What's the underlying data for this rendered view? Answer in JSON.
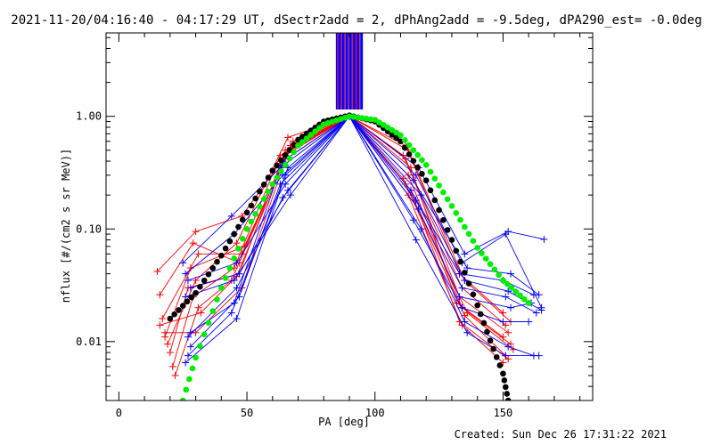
{
  "chart_data": {
    "type": "scatter",
    "title": "2021-11-20/04:16:40 - 04:17:29 UT, dSectr2add = 2, dPhAng2add = -9.5deg, dPA290_est= -0.0deg",
    "xlabel": "PA [deg]",
    "ylabel": "nflux [#/(cm2 s sr MeV)]",
    "xlim": [
      -5,
      185
    ],
    "ylim": [
      0.003,
      5.5
    ],
    "y_scale": "log",
    "x_ticks": [
      0,
      50,
      100,
      150
    ],
    "x_tick_labels": [
      "0",
      "50",
      "100",
      "150"
    ],
    "y_ticks": [
      0.01,
      0.1,
      1.0
    ],
    "y_tick_labels": [
      "0.01",
      "0.10",
      "1.00"
    ],
    "grid": false,
    "colors": {
      "red": "#ff0000",
      "blue": "#0000ff",
      "black": "#000000",
      "green": "#00ee00"
    },
    "vertical_lines": {
      "x_range": [
        85,
        95
      ],
      "y_range": [
        1.15,
        5.5
      ],
      "count": 22
    },
    "series": [
      {
        "color": "red",
        "style": "line-plus",
        "lines": [
          [
            [
              15,
              0.042
            ],
            [
              30,
              0.095
            ],
            [
              48,
              0.13
            ],
            [
              65,
              0.45
            ],
            [
              90,
              1.0
            ],
            [
              112,
              0.55
            ],
            [
              133,
              0.04
            ],
            [
              150,
              0.018
            ]
          ],
          [
            [
              16,
              0.026
            ],
            [
              29,
              0.075
            ],
            [
              47,
              0.05
            ],
            [
              66,
              0.5
            ],
            [
              90,
              1.0
            ],
            [
              113,
              0.5
            ],
            [
              135,
              0.035
            ],
            [
              153,
              0.015
            ]
          ],
          [
            [
              17,
              0.016
            ],
            [
              31,
              0.06
            ],
            [
              48,
              0.06
            ],
            [
              67,
              0.55
            ],
            [
              90,
              1.0
            ],
            [
              111,
              0.45
            ],
            [
              134,
              0.03
            ],
            [
              151,
              0.014
            ]
          ],
          [
            [
              18,
              0.011
            ],
            [
              28,
              0.045
            ],
            [
              49,
              0.07
            ],
            [
              68,
              0.6
            ],
            [
              90,
              1.0
            ],
            [
              112,
              0.42
            ],
            [
              133,
              0.025
            ],
            [
              152,
              0.012
            ]
          ],
          [
            [
              19,
              0.0095
            ],
            [
              30,
              0.035
            ],
            [
              46,
              0.075
            ],
            [
              66,
              0.65
            ],
            [
              90,
              1.0
            ],
            [
              114,
              0.35
            ],
            [
              132,
              0.022
            ],
            [
              150,
              0.011
            ]
          ],
          [
            [
              20,
              0.008
            ],
            [
              27,
              0.03
            ],
            [
              47,
              0.04
            ],
            [
              65,
              0.5
            ],
            [
              90,
              1.0
            ],
            [
              113,
              0.3
            ],
            [
              134,
              0.02
            ],
            [
              153,
              0.0095
            ]
          ],
          [
            [
              21,
              0.006
            ],
            [
              29,
              0.025
            ],
            [
              45,
              0.045
            ],
            [
              63,
              0.45
            ],
            [
              90,
              1.0
            ],
            [
              111,
              0.28
            ],
            [
              136,
              0.018
            ],
            [
              154,
              0.0085
            ]
          ],
          [
            [
              22,
              0.005
            ],
            [
              31,
              0.02
            ],
            [
              44,
              0.035
            ],
            [
              64,
              0.4
            ],
            [
              90,
              1.0
            ],
            [
              112,
              0.25
            ],
            [
              135,
              0.017
            ],
            [
              151,
              0.0075
            ]
          ],
          [
            [
              16,
              0.014
            ],
            [
              32,
              0.018
            ],
            [
              46,
              0.038
            ],
            [
              67,
              0.55
            ],
            [
              90,
              1.0
            ],
            [
              114,
              0.22
            ],
            [
              133,
              0.015
            ],
            [
              152,
              0.007
            ]
          ],
          [
            [
              18,
              0.012
            ],
            [
              30,
              0.012
            ],
            [
              48,
              0.03
            ],
            [
              66,
              0.48
            ],
            [
              90,
              1.0
            ],
            [
              113,
              0.2
            ],
            [
              134,
              0.014
            ],
            [
              150,
              0.0065
            ]
          ]
        ]
      },
      {
        "color": "blue",
        "style": "line-plus",
        "lines": [
          [
            [
              25,
              0.05
            ],
            [
              44,
              0.13
            ],
            [
              63,
              0.35
            ],
            [
              90,
              1.0
            ],
            [
              117,
              0.35
            ],
            [
              135,
              0.06
            ],
            [
              152,
              0.095
            ],
            [
              166,
              0.081
            ]
          ],
          [
            [
              26,
              0.04
            ],
            [
              45,
              0.09
            ],
            [
              64,
              0.3
            ],
            [
              90,
              1.0
            ],
            [
              116,
              0.3
            ],
            [
              134,
              0.05
            ],
            [
              151,
              0.09
            ],
            [
              165,
              0.02
            ]
          ],
          [
            [
              27,
              0.035
            ],
            [
              46,
              0.05
            ],
            [
              65,
              0.25
            ],
            [
              90,
              1.0
            ],
            [
              115,
              0.27
            ],
            [
              136,
              0.045
            ],
            [
              153,
              0.04
            ],
            [
              164,
              0.026
            ]
          ],
          [
            [
              28,
              0.03
            ],
            [
              47,
              0.04
            ],
            [
              66,
              0.22
            ],
            [
              90,
              1.0
            ],
            [
              114,
              0.22
            ],
            [
              133,
              0.04
            ],
            [
              150,
              0.035
            ],
            [
              162,
              0.026
            ]
          ],
          [
            [
              26,
              0.025
            ],
            [
              45,
              0.035
            ],
            [
              67,
              0.2
            ],
            [
              90,
              1.0
            ],
            [
              118,
              0.2
            ],
            [
              135,
              0.035
            ],
            [
              152,
              0.028
            ],
            [
              165,
              0.019
            ]
          ],
          [
            [
              27,
              0.011
            ],
            [
              46,
              0.03
            ],
            [
              64,
              0.19
            ],
            [
              90,
              1.0
            ],
            [
              116,
              0.18
            ],
            [
              134,
              0.03
            ],
            [
              151,
              0.025
            ],
            [
              163,
              0.018
            ]
          ],
          [
            [
              28,
              0.009
            ],
            [
              47,
              0.025
            ],
            [
              63,
              0.25
            ],
            [
              90,
              1.0
            ],
            [
              117,
              0.15
            ],
            [
              133,
              0.025
            ],
            [
              153,
              0.02
            ],
            [
              161,
              0.022
            ]
          ],
          [
            [
              27,
              0.0075
            ],
            [
              44,
              0.018
            ],
            [
              65,
              0.3
            ],
            [
              90,
              1.0
            ],
            [
              115,
              0.12
            ],
            [
              134,
              0.02
            ],
            [
              150,
              0.015
            ],
            [
              160,
              0.015
            ]
          ],
          [
            [
              26,
              0.0065
            ],
            [
              46,
              0.016
            ],
            [
              66,
              0.35
            ],
            [
              90,
              1.0
            ],
            [
              118,
              0.1
            ],
            [
              135,
              0.015
            ],
            [
              152,
              0.009
            ],
            [
              162,
              0.0075
            ]
          ],
          [
            [
              28,
              0.012
            ],
            [
              45,
              0.022
            ],
            [
              64,
              0.4
            ],
            [
              90,
              1.0
            ],
            [
              116,
              0.08
            ],
            [
              136,
              0.012
            ],
            [
              151,
              0.0075
            ],
            [
              164,
              0.0075
            ]
          ]
        ]
      },
      {
        "color": "black",
        "style": "dots",
        "points": [
          [
            20,
            0.016
          ],
          [
            30,
            0.027
          ],
          [
            40,
            0.058
          ],
          [
            50,
            0.14
          ],
          [
            60,
            0.33
          ],
          [
            70,
            0.62
          ],
          [
            80,
            0.9
          ],
          [
            90,
            1.02
          ],
          [
            100,
            0.9
          ],
          [
            110,
            0.6
          ],
          [
            120,
            0.27
          ],
          [
            130,
            0.08
          ],
          [
            140,
            0.021
          ],
          [
            145,
            0.0102
          ],
          [
            150,
            0.0052
          ],
          [
            152,
            0.003
          ]
        ]
      },
      {
        "color": "green",
        "style": "dots",
        "points": [
          [
            25,
            0.003
          ],
          [
            30,
            0.0072
          ],
          [
            40,
            0.03
          ],
          [
            50,
            0.1
          ],
          [
            60,
            0.25
          ],
          [
            70,
            0.55
          ],
          [
            80,
            0.85
          ],
          [
            90,
            1.0
          ],
          [
            100,
            0.93
          ],
          [
            110,
            0.68
          ],
          [
            120,
            0.37
          ],
          [
            130,
            0.16
          ],
          [
            140,
            0.068
          ],
          [
            150,
            0.035
          ],
          [
            160,
            0.022
          ]
        ]
      }
    ]
  },
  "footer": {
    "created": "Created: Sun Dec 26 17:31:22 2021"
  }
}
